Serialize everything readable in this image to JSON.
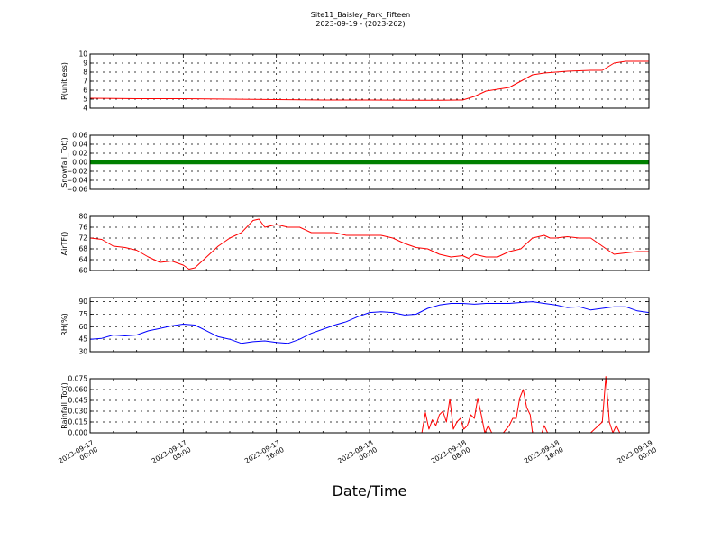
{
  "title": "Site11_Baisley_Park_Fifteen",
  "subtitle": "2023-09-19 - (2023-262)",
  "xlabel": "Date/Time",
  "x_ticks": [
    {
      "line1": "2023-09-17",
      "line2": "00:00",
      "hours": 0
    },
    {
      "line1": "2023-09-17",
      "line2": "08:00",
      "hours": 8
    },
    {
      "line1": "2023-09-17",
      "line2": "16:00",
      "hours": 16
    },
    {
      "line1": "2023-09-18",
      "line2": "00:00",
      "hours": 24
    },
    {
      "line1": "2023-09-18",
      "line2": "08:00",
      "hours": 32
    },
    {
      "line1": "2023-09-18",
      "line2": "16:00",
      "hours": 40
    },
    {
      "line1": "2023-09-19",
      "line2": "00:00",
      "hours": 48
    }
  ],
  "chart_data": [
    {
      "type": "line",
      "ylabel": "P(unitless)",
      "ylim": [
        4,
        10
      ],
      "yticks": [
        "4",
        "5",
        "6",
        "7",
        "8",
        "9",
        "10"
      ],
      "ytick_values": [
        4,
        5,
        6,
        7,
        8,
        9,
        10
      ],
      "grid": true,
      "color": "#ff0000",
      "x_hours": [
        0,
        4,
        8,
        12,
        16,
        20,
        24,
        28,
        30,
        32,
        33,
        34,
        35,
        36,
        37,
        38,
        39,
        40,
        41,
        42,
        43,
        44,
        45,
        46,
        47,
        48
      ],
      "values": [
        5.1,
        5.05,
        5.05,
        5.0,
        4.95,
        4.9,
        4.9,
        4.88,
        4.88,
        4.9,
        5.3,
        5.9,
        6.1,
        6.3,
        7.0,
        7.7,
        7.9,
        8.0,
        8.1,
        8.15,
        8.2,
        8.2,
        9.0,
        9.2,
        9.2,
        9.2
      ]
    },
    {
      "type": "line",
      "ylabel": "Snowfall_Tot()",
      "ylim": [
        -0.06,
        0.06
      ],
      "yticks": [
        "−0.06",
        "−0.04",
        "−0.02",
        "0.00",
        "0.02",
        "0.04",
        "0.06"
      ],
      "ytick_values": [
        -0.06,
        -0.04,
        -0.02,
        0,
        0.02,
        0.04,
        0.06
      ],
      "grid": true,
      "color": "#008000",
      "x_hours": [
        0,
        48
      ],
      "values": [
        0,
        0
      ]
    },
    {
      "type": "line",
      "ylabel": "AirTF()",
      "ylim": [
        60,
        80
      ],
      "yticks": [
        "60",
        "64",
        "68",
        "72",
        "76",
        "80"
      ],
      "ytick_values": [
        60,
        64,
        68,
        72,
        76,
        80
      ],
      "grid": true,
      "color": "#ff0000",
      "x_hours": [
        0,
        1,
        2,
        3,
        4,
        5,
        6,
        7,
        8,
        8.5,
        9,
        10,
        11,
        12,
        13,
        14,
        14.5,
        15,
        16,
        17,
        18,
        19,
        20,
        21,
        22,
        23,
        24,
        25,
        26,
        27,
        28,
        29,
        30,
        31,
        32,
        32.5,
        33,
        34,
        35,
        36,
        37,
        38,
        39,
        39.5,
        40,
        41,
        42,
        43,
        44,
        45,
        46,
        47,
        48
      ],
      "values": [
        72,
        71.5,
        69,
        68.5,
        67.5,
        65,
        63,
        63.5,
        62,
        60.5,
        61,
        65,
        69,
        72,
        74,
        78.5,
        79,
        76,
        77,
        76,
        76,
        74,
        74,
        74,
        73,
        73,
        73,
        73,
        72,
        70,
        68.5,
        68,
        66,
        65,
        65.5,
        64.5,
        66,
        65,
        65,
        67,
        68,
        72,
        73,
        72,
        72,
        72.5,
        72,
        72,
        69,
        66,
        66.5,
        67,
        67
      ]
    },
    {
      "type": "line",
      "ylabel": "RH(%)",
      "ylim": [
        30,
        95
      ],
      "yticks": [
        "30",
        "45",
        "60",
        "75",
        "90"
      ],
      "ytick_values": [
        30,
        45,
        60,
        75,
        90
      ],
      "grid": true,
      "color": "#0000ff",
      "x_hours": [
        0,
        1,
        2,
        3,
        4,
        5,
        6,
        7,
        8,
        9,
        10,
        11,
        12,
        13,
        14,
        15,
        16,
        17,
        18,
        19,
        20,
        21,
        22,
        23,
        24,
        25,
        26,
        27,
        28,
        29,
        30,
        31,
        32,
        33,
        34,
        35,
        36,
        37,
        38,
        39,
        40,
        41,
        42,
        43,
        44,
        45,
        46,
        47,
        48
      ],
      "values": [
        45,
        46,
        50,
        49,
        50,
        55,
        58,
        61,
        63,
        62,
        55,
        48,
        45,
        40,
        42,
        43,
        41,
        40,
        45,
        52,
        57,
        62,
        66,
        72,
        77,
        78,
        77,
        74,
        75,
        82,
        86,
        88,
        88,
        87,
        88,
        88,
        88,
        89,
        90,
        88,
        86,
        83,
        84,
        80,
        82,
        84,
        84,
        79,
        77
      ]
    },
    {
      "type": "line",
      "ylabel": "Rainfall_Tot()",
      "ylim": [
        0,
        0.075
      ],
      "yticks": [
        "0.000",
        "0.015",
        "0.030",
        "0.045",
        "0.060",
        "0.075"
      ],
      "ytick_values": [
        0,
        0.015,
        0.03,
        0.045,
        0.06,
        0.075
      ],
      "grid": true,
      "color": "#ff0000",
      "x_hours": [
        0,
        28.5,
        28.8,
        29.1,
        29.4,
        29.7,
        30.0,
        30.3,
        30.6,
        30.9,
        31.2,
        31.5,
        31.8,
        32.1,
        32.4,
        32.7,
        33.0,
        33.3,
        33.6,
        33.9,
        34.2,
        34.5,
        35.0,
        35.5,
        36.0,
        36.3,
        36.6,
        36.9,
        37.2,
        37.5,
        37.8,
        38.0,
        38.5,
        38.8,
        39.0,
        39.3,
        40,
        42,
        43,
        44,
        44.3,
        44.6,
        44.9,
        45.2,
        45.5,
        46,
        48
      ],
      "values": [
        0,
        0,
        0.028,
        0.005,
        0.018,
        0.01,
        0.025,
        0.03,
        0.015,
        0.047,
        0.005,
        0.015,
        0.02,
        0.005,
        0.01,
        0.025,
        0.02,
        0.048,
        0.025,
        0,
        0.01,
        0,
        0,
        0,
        0.01,
        0.02,
        0.02,
        0.048,
        0.06,
        0.035,
        0.025,
        0,
        0,
        0,
        0.01,
        0,
        0,
        0,
        0,
        0.015,
        0.078,
        0.015,
        0,
        0.01,
        0,
        0,
        0
      ]
    }
  ]
}
